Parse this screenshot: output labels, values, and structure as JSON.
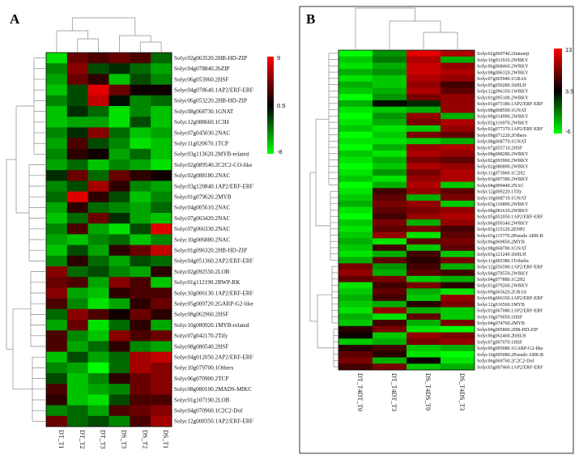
{
  "chart_data": [
    {
      "type": "heatmap",
      "panel": "A",
      "columns": [
        "DT_T1",
        "DT_T2",
        "DT_T3",
        "DS_T3",
        "DS_T2",
        "DS_T1"
      ],
      "rows": [
        "Solyc02g063520.2HB-HD-ZIP",
        "Solyc04g078840.2bZIP",
        "Solyc06g053960.2HSF",
        "Solyc04g078640.1AP2/ERF-ERF",
        "Solyc06g053220.2HB-HD-ZIP",
        "Solyc08g068730.1GNAT",
        "Solyc12g088660.1C3H",
        "Solyc07g045030.2NAC",
        "Solyc11g020670.1TCP",
        "Solyc03g113620.2MYB-related",
        "Solyc02g089540.2C2C2-CO-like",
        "Solyc02g088180.2NAC",
        "Solyc03g120840.1AP2/ERF-ERF",
        "Solyc01g079620.2MYB",
        "Solyc04g005610.2NAC",
        "Solyc07g063420.2NAC",
        "Solyc07g066330.2NAC",
        "Solyc10g006880.2NAC",
        "Solyc01g096320.2HB-HD-ZIP",
        "Solyc04g051360.2AP2/ERF-ERF",
        "Solyc02g092550.2LOB",
        "Solyc01g112190.2RWP-RK",
        "Solyc10g006130.1AP2/ERF-ERF",
        "Solyc05g009720.2GARP-G2-like",
        "Solyc08g062960.2HSF",
        "Solyc10g080920.1MYB-related",
        "Solyc07g042170.2Tify",
        "Solyc08g080540.2HSF",
        "Solyc04g012050.2AP2/ERF-ERF",
        "Solyc10g079700.1Others",
        "Solyc06g070900.2TCP",
        "Solyc08g080100.2MADS-MIKC",
        "Solyc01g107190.2LOB",
        "Solyc04g070960.1C2C2-Dof",
        "Solyc12g008350.1AP2/ERF-ERF"
      ],
      "values": [
        [
          -7,
          4,
          3,
          4,
          3,
          -3
        ],
        [
          -4,
          5,
          -2,
          -1,
          -3,
          -5
        ],
        [
          -5,
          4,
          2,
          -6,
          -2,
          -4
        ],
        [
          -6,
          -2,
          8,
          4,
          1,
          1
        ],
        [
          -4,
          -2,
          7,
          0,
          -4,
          -3
        ],
        [
          -6,
          -1,
          -3,
          -7,
          -4,
          -6
        ],
        [
          -6,
          -5,
          -5,
          -7,
          -2,
          -6
        ],
        [
          -4,
          -1,
          5,
          -3,
          -6,
          -5
        ],
        [
          -5,
          3,
          -2,
          -4,
          -7,
          -6
        ],
        [
          -4,
          2,
          1,
          -5,
          -3,
          -6
        ],
        [
          -5,
          -3,
          -6,
          -4,
          -5,
          -7
        ],
        [
          -1,
          4,
          -3,
          4,
          2,
          1
        ],
        [
          -4,
          -2,
          6,
          2,
          -4,
          -5
        ],
        [
          -3,
          8,
          2,
          -2,
          -6,
          -4
        ],
        [
          -5,
          2,
          -3,
          -4,
          -5,
          -3
        ],
        [
          -6,
          -3,
          4,
          -1,
          -5,
          -6
        ],
        [
          -4,
          3,
          -5,
          -7,
          -2,
          8
        ],
        [
          -5,
          -6,
          -4,
          -3,
          -6,
          -4
        ],
        [
          -6,
          -2,
          -5,
          2,
          4,
          7
        ],
        [
          -4,
          2,
          -3,
          -5,
          -2,
          -3
        ],
        [
          5,
          -3,
          -2,
          -4,
          -5,
          2
        ],
        [
          4,
          3,
          -5,
          5,
          3,
          -6
        ],
        [
          5,
          -5,
          -6,
          2,
          3,
          3
        ],
        [
          3,
          -4,
          -7,
          -5,
          2,
          4
        ],
        [
          -3,
          5,
          3,
          1,
          4,
          2
        ],
        [
          -5,
          4,
          -7,
          -3,
          2,
          -5
        ],
        [
          3,
          -4,
          -6,
          5,
          3,
          4
        ],
        [
          3,
          -5,
          -3,
          2,
          -4,
          -5
        ],
        [
          -6,
          -2,
          -5,
          -3,
          6,
          7
        ],
        [
          -4,
          -5,
          -8,
          -3,
          6,
          5
        ],
        [
          -2,
          -6,
          -4,
          2,
          4,
          5
        ],
        [
          3,
          -6,
          -5,
          -4,
          4,
          5
        ],
        [
          2,
          -6,
          -7,
          -2,
          3,
          3
        ],
        [
          -4,
          -3,
          -5,
          3,
          4,
          5
        ],
        [
          4,
          -3,
          -2,
          -4,
          3,
          6
        ]
      ],
      "scale": {
        "min": -8,
        "mid": 0.5,
        "max": 9
      }
    },
    {
      "type": "heatmap",
      "panel": "B",
      "columns": [
        "DT_T4DT_T0",
        "DT_T4DT_T3",
        "DS_T4DS_T0",
        "DS_T4DS_T3"
      ],
      "rows": [
        "Solyc02g069740.2Jumonji",
        "Solyc10g011910.2WRKY",
        "Solyc06g068460.2WRKY",
        "Solyc08g006320.2WRKY",
        "Solyc07g065940.1GRAS",
        "Solyc05g050280.1bHLH",
        "Solyc12g096350.1WRKY",
        "Solyc01g095100.2WRKY",
        "Solyc01g073180.1AP2/ERF-ERF",
        "Solyc08g068590.1GNAT",
        "Solyc09g014990.2WRKY",
        "Solyc03g116970.2WRKY",
        "Solyc02g077370.1AP2/ERF-ERF",
        "Solyc09g071220.2Others",
        "Solyc08g068770.1GNAT",
        "Solyc07g055710.2HSF",
        "Solyc08g008280.2WRKY",
        "Solyc02g093960.2WRKY",
        "Solyc02g080890.2WRKY",
        "Solyc11g073960.1C2H2",
        "Solyc03g007380.2WRKY",
        "Solyc04g009440.2NAC",
        "Solyc12g009220.1Tify",
        "Solyc10g068710.1GNAT",
        "Solyc03g116890.2WRKY",
        "Solyc08g081610.2WRKY",
        "Solyc05g052050.1AP2/ERF-ERF",
        "Solyc06g050340.2WRKY",
        "Solyc03g115120.2ENP2",
        "Solyc03g115770.2Pseudo ARR-B",
        "Solyc06g069850.2MYB",
        "Solyc08g068780.1GNAT",
        "Solyc03g121240.1bHLH",
        "Solyc11g005380.1Trihelix",
        "Solyc12g056590.1AP2/ERF-ERF",
        "Solyc04g078550.2WRKY",
        "Solyc04g077880.1C2H2",
        "Solyc01g079260.2WRKY",
        "Solyc09g065620.2GRAS",
        "Solyc06g066350.1AP2/ERF-ERF",
        "Solyc12g016560.1MYB",
        "Solyc01g067080.1AP2/ERF-ERF",
        "Solyc10g079050.1HSF",
        "Solyc04g074760.2MYB",
        "Solyc04g005800.2HB-HD-ZIP",
        "Solyc06g062460.2bHLH",
        "Solyc07g007070.1HSF",
        "Solyc06g005080.1GARP-G2-like",
        "Solyc10g005080.2Pseudo ARR-B",
        "Solyc06g069760.2C2C2-Dof",
        "Solyc03g007460.1AP2/ERF-ERF"
      ],
      "values": [
        [
          -6,
          -2,
          12,
          10
        ],
        [
          -4,
          -1,
          10,
          -3
        ],
        [
          -5,
          -3,
          11,
          9
        ],
        [
          -3,
          -2,
          11,
          10
        ],
        [
          -5,
          -4,
          10,
          9
        ],
        [
          -3,
          -4,
          9,
          6
        ],
        [
          -4,
          -3,
          10,
          7
        ],
        [
          -6,
          -2,
          8,
          9
        ],
        [
          -3,
          3,
          2,
          9
        ],
        [
          -5,
          -4,
          -3,
          9
        ],
        [
          -6,
          -2,
          9,
          -3
        ],
        [
          -5,
          -3,
          8,
          10
        ],
        [
          -4,
          -5,
          -4,
          9
        ],
        [
          -6,
          -4,
          8,
          7
        ],
        [
          -5,
          -5,
          -4,
          -3
        ],
        [
          -6,
          -3,
          9,
          10
        ],
        [
          -4,
          -5,
          10,
          9
        ],
        [
          -5,
          -3,
          8,
          7
        ],
        [
          -6,
          -4,
          10,
          9
        ],
        [
          -5,
          -2,
          8,
          10
        ],
        [
          -4,
          -5,
          9,
          10
        ],
        [
          -6,
          -3,
          10,
          -4
        ],
        [
          -5,
          6,
          9,
          7
        ],
        [
          -4,
          7,
          -3,
          8
        ],
        [
          -3,
          8,
          9,
          -4
        ],
        [
          -5,
          7,
          8,
          9
        ],
        [
          -6,
          6,
          9,
          10
        ],
        [
          -4,
          8,
          -3,
          9
        ],
        [
          -5,
          7,
          8,
          6
        ],
        [
          -4,
          9,
          -5,
          7
        ],
        [
          -3,
          -5,
          7,
          8
        ],
        [
          -4,
          6,
          -4,
          7
        ],
        [
          -5,
          -3,
          6,
          -4
        ],
        [
          -3,
          7,
          5,
          8
        ],
        [
          8,
          -2,
          6,
          -3
        ],
        [
          9,
          -3,
          7,
          6
        ],
        [
          7,
          8,
          -4,
          -3
        ],
        [
          -5,
          6,
          8,
          5
        ],
        [
          -4,
          7,
          -3,
          -5
        ],
        [
          -3,
          6,
          -4,
          9
        ],
        [
          -4,
          -3,
          5,
          8
        ],
        [
          -5,
          9,
          -3,
          -4
        ],
        [
          -3,
          -5,
          7,
          -4
        ],
        [
          -4,
          6,
          -3,
          8
        ],
        [
          5,
          8,
          -5,
          -6
        ],
        [
          4,
          -4,
          9,
          8
        ],
        [
          -4,
          -3,
          8,
          9
        ],
        [
          5,
          6,
          -4,
          -3
        ],
        [
          7,
          5,
          -5,
          -6
        ],
        [
          8,
          -3,
          4,
          -5
        ],
        [
          6,
          8,
          -4,
          -3
        ]
      ],
      "scale": {
        "min": -6,
        "mid": 3.5,
        "max": 13
      }
    }
  ]
}
